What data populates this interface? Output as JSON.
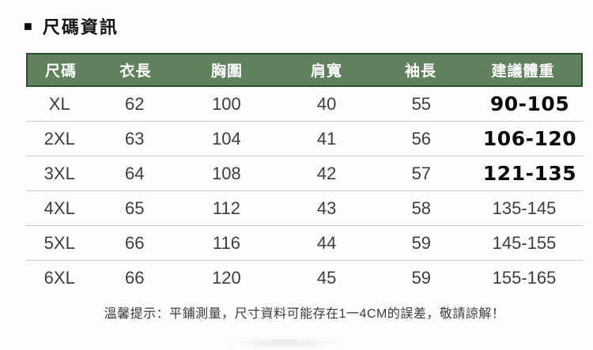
{
  "title": {
    "bullet": "■",
    "text": "尺碼資訊"
  },
  "colors": {
    "header_bg": "#5f815e",
    "header_border": "#2d4c2c",
    "header_text": "#ffffff",
    "divider": "#cbcbcb",
    "cell_text": "#3d3d3d",
    "bold_weight_text": "#0a0a0a"
  },
  "table": {
    "header": {
      "columns": [
        "尺碼",
        "衣長",
        "胸圍",
        "肩寬",
        "袖長",
        "建議體重"
      ]
    },
    "rows": [
      {
        "size": "XL",
        "length": "62",
        "chest": "100",
        "shoulder": "40",
        "sleeve": "55",
        "weight": "90-105"
      },
      {
        "size": "2XL",
        "length": "63",
        "chest": "104",
        "shoulder": "41",
        "sleeve": "56",
        "weight": "106-120"
      },
      {
        "size": "3XL",
        "length": "64",
        "chest": "108",
        "shoulder": "42",
        "sleeve": "57",
        "weight": "121-135"
      },
      {
        "size": "4XL",
        "length": "65",
        "chest": "112",
        "shoulder": "43",
        "sleeve": "58",
        "weight": "135-145"
      },
      {
        "size": "5XL",
        "length": "66",
        "chest": "116",
        "shoulder": "44",
        "sleeve": "59",
        "weight": "145-155"
      },
      {
        "size": "6XL",
        "length": "66",
        "chest": "120",
        "shoulder": "45",
        "sleeve": "59",
        "weight": "155-165"
      }
    ]
  },
  "note": {
    "text": "溫馨提示：平鋪測量，尺寸資料可能存在1一4CM的誤差，敬請諒解！"
  }
}
